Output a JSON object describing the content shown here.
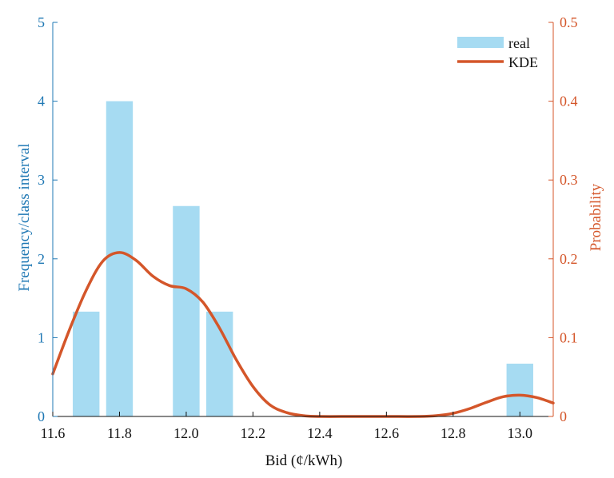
{
  "chart_data": {
    "type": "bar",
    "xlabel": "Bid (¢/kWh)",
    "ylabel_left": "Frequency/class interval",
    "ylabel_right": "Probability",
    "xlim": [
      11.6,
      13.1
    ],
    "ylim_left": [
      0,
      5
    ],
    "ylim_right": [
      0,
      0.5
    ],
    "x_ticks": [
      "11.6",
      "11.8",
      "12.0",
      "12.2",
      "12.4",
      "12.6",
      "12.8",
      "13.0"
    ],
    "y_left_ticks": [
      "0",
      "1",
      "2",
      "3",
      "4",
      "5"
    ],
    "y_right_ticks": [
      "0",
      "0.1",
      "0.2",
      "0.3",
      "0.4",
      "0.5"
    ],
    "legend": {
      "position": "top-right",
      "entries": [
        "real",
        "KDE"
      ]
    },
    "series": [
      {
        "name": "real",
        "kind": "bar",
        "axis": "left",
        "color": "#a6dbf2",
        "x": [
          11.7,
          11.8,
          12.0,
          12.1,
          13.0
        ],
        "values": [
          1.33,
          4.0,
          2.67,
          1.33,
          0.67
        ],
        "bar_width": 0.08
      },
      {
        "name": "KDE",
        "kind": "line",
        "axis": "right",
        "color": "#d4562a",
        "x": [
          11.6,
          11.65,
          11.7,
          11.75,
          11.8,
          11.85,
          11.9,
          11.95,
          12.0,
          12.05,
          12.1,
          12.15,
          12.2,
          12.25,
          12.3,
          12.35,
          12.4,
          12.5,
          12.6,
          12.7,
          12.75,
          12.8,
          12.85,
          12.9,
          12.95,
          13.0,
          13.05,
          13.1
        ],
        "values": [
          0.054,
          0.11,
          0.16,
          0.197,
          0.208,
          0.198,
          0.178,
          0.166,
          0.162,
          0.145,
          0.112,
          0.072,
          0.038,
          0.015,
          0.005,
          0.001,
          0.0,
          0.0,
          0.0,
          0.0,
          0.001,
          0.004,
          0.01,
          0.018,
          0.025,
          0.027,
          0.024,
          0.017
        ]
      }
    ]
  },
  "colors": {
    "left_axis": "#1f78b4",
    "right_axis": "#d4562a",
    "bar": "#a6dbf2",
    "kde": "#d4562a"
  }
}
